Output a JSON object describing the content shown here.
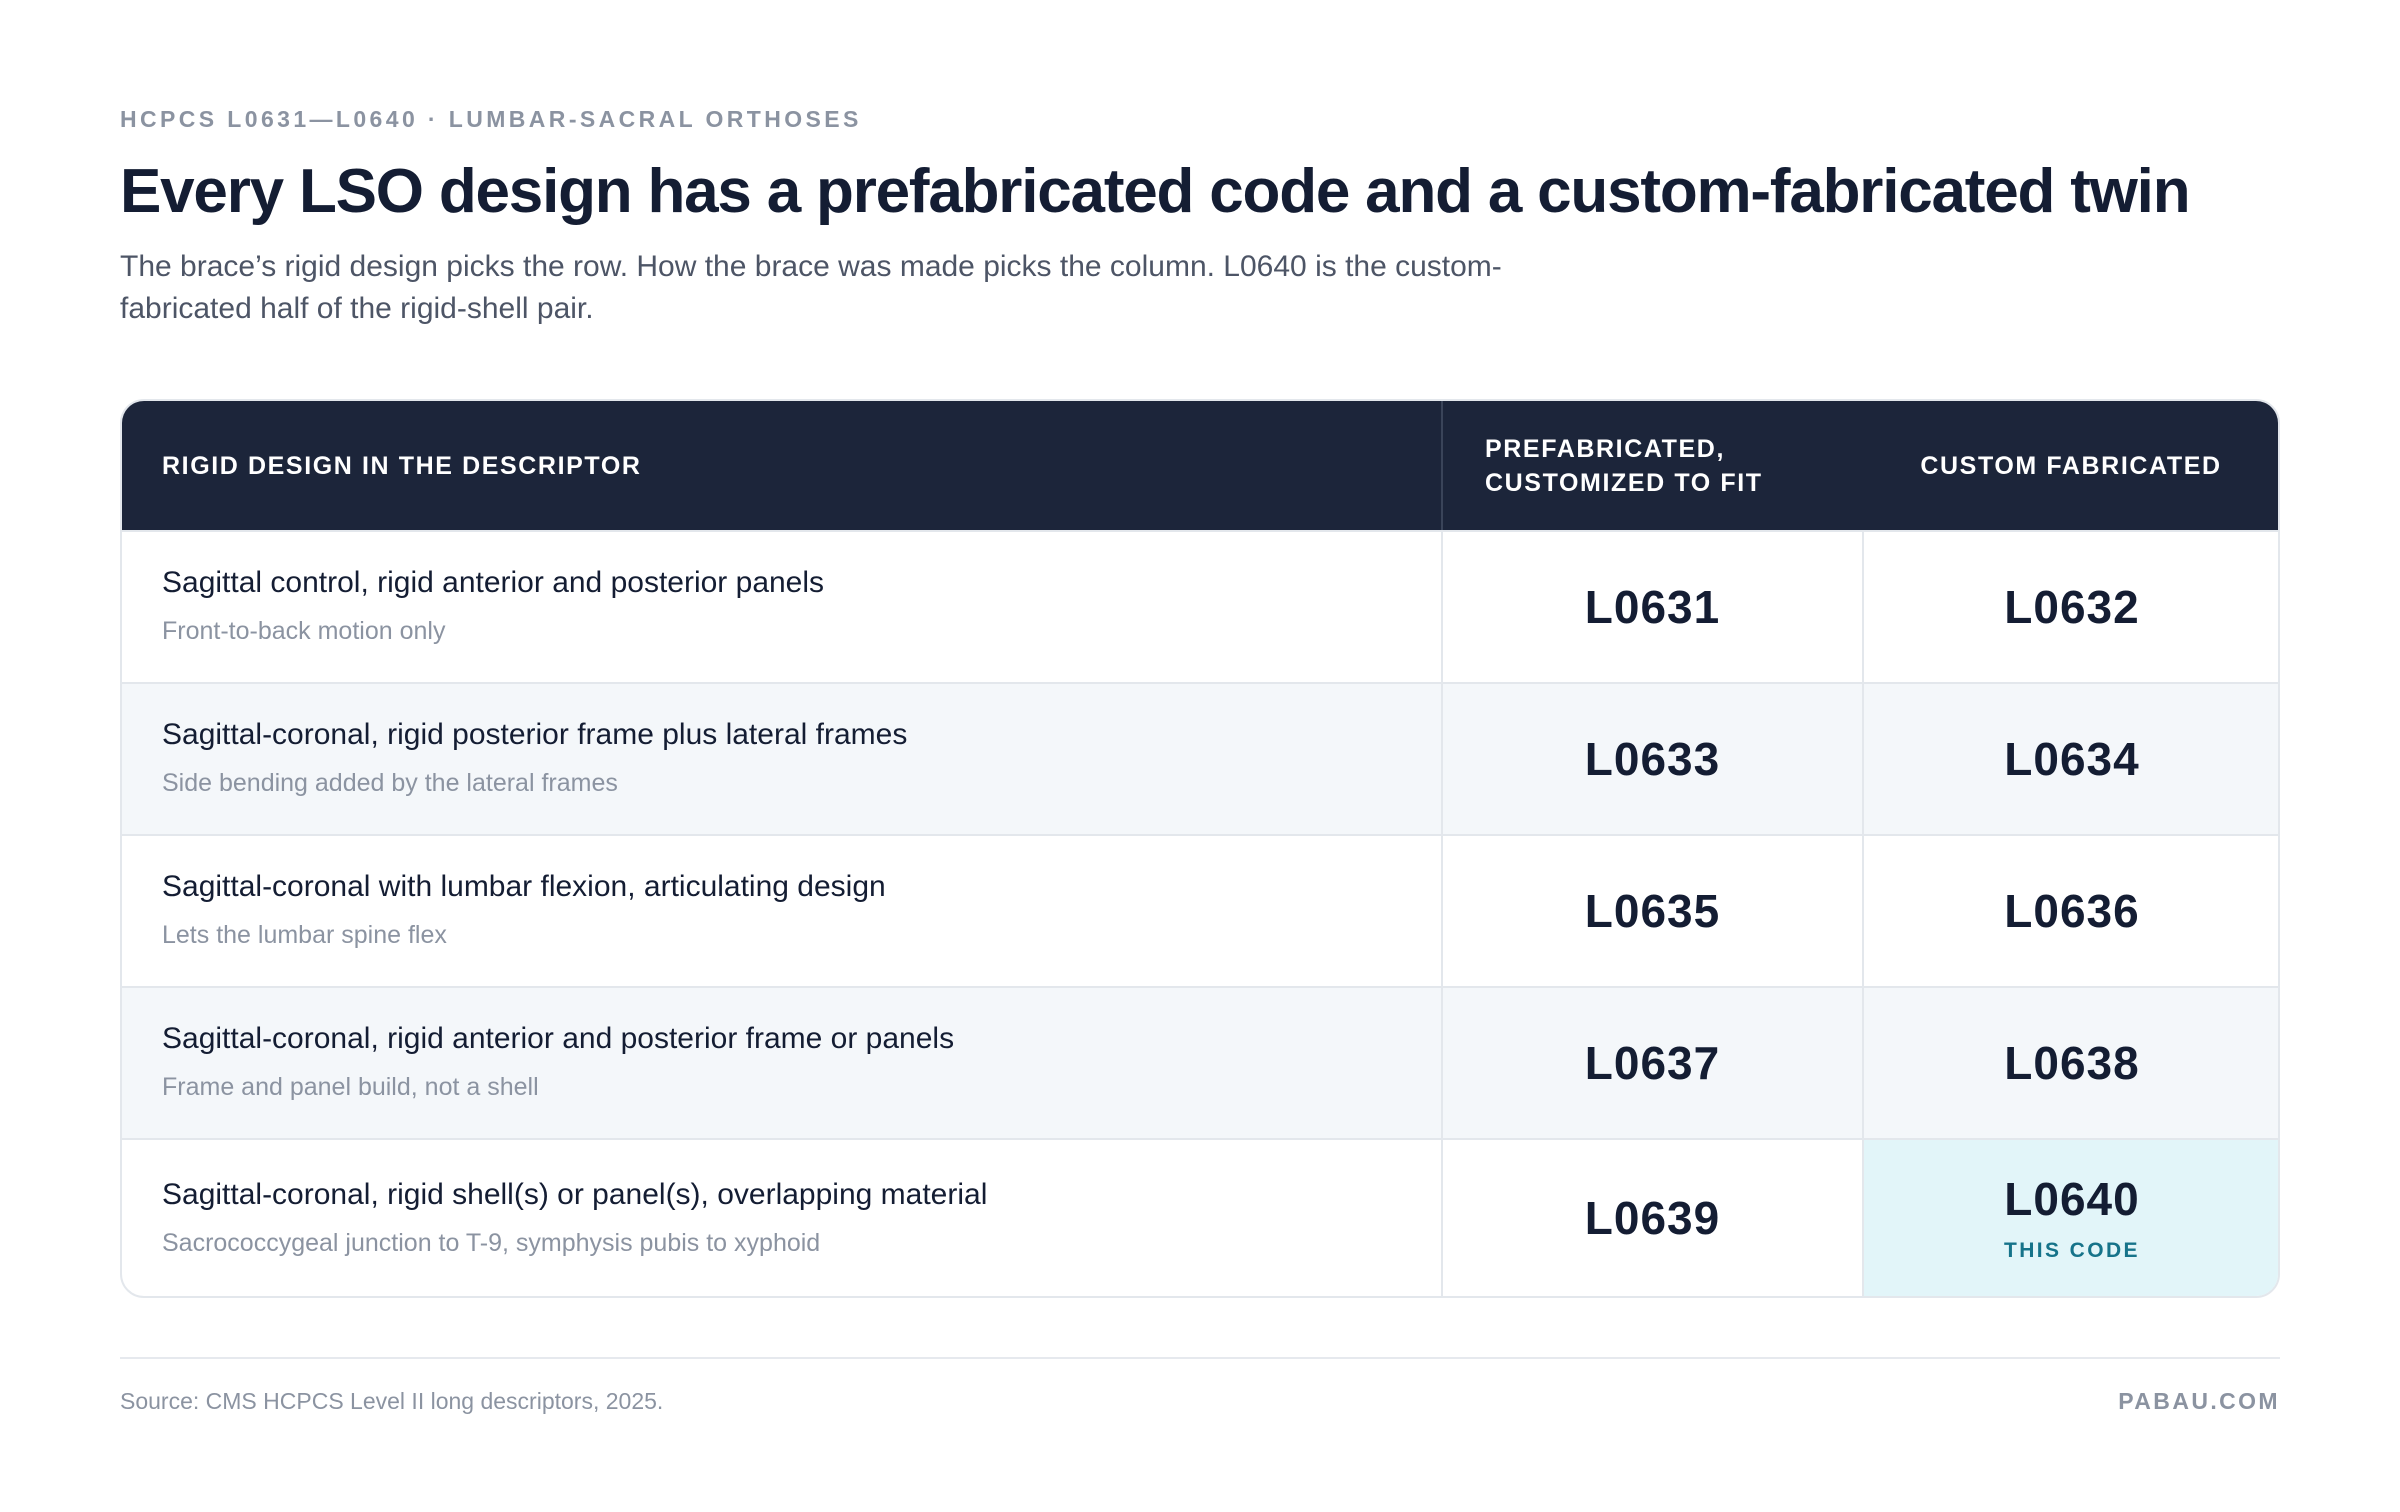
{
  "header": {
    "eyebrow": "HCPCS L0631—L0640 · LUMBAR-SACRAL ORTHOSES",
    "title": "Every LSO design has a prefabricated code and a custom-fabricated twin",
    "subtitle": "The brace’s rigid design picks the row. How the brace was made picks the column. L0640 is the custom-fabricated half of the rigid-shell pair."
  },
  "table": {
    "columns": [
      "RIGID DESIGN IN THE DESCRIPTOR",
      "PREFABRICATED, CUSTOMIZED TO FIT",
      "CUSTOM FABRICATED"
    ],
    "rows": [
      {
        "design": "Sagittal control, rigid anterior and posterior panels",
        "note": "Front-to-back motion only",
        "prefabricated": "L0631",
        "custom": "L0632"
      },
      {
        "design": "Sagittal-coronal, rigid posterior frame plus lateral frames",
        "note": "Side bending added by the lateral frames",
        "prefabricated": "L0633",
        "custom": "L0634"
      },
      {
        "design": "Sagittal-coronal with lumbar flexion, articulating design",
        "note": "Lets the lumbar spine flex",
        "prefabricated": "L0635",
        "custom": "L0636"
      },
      {
        "design": "Sagittal-coronal, rigid anterior and posterior frame or panels",
        "note": "Frame and panel build, not a shell",
        "prefabricated": "L0637",
        "custom": "L0638"
      },
      {
        "design": "Sagittal-coronal, rigid shell(s) or panel(s), overlapping material",
        "note": "Sacrococcygeal junction to T-9, symphysis pubis to xyphoid",
        "prefabricated": "L0639",
        "custom": "L0640",
        "custom_tag": "THIS CODE"
      }
    ]
  },
  "footer": {
    "source": "Source: CMS HCPCS Level II long descriptors, 2025.",
    "brand": "PABAU.COM"
  },
  "colors": {
    "header_bg": "#1c253a",
    "highlight_bg": "#e2f5f9",
    "accent": "#16738a",
    "alt_row_bg": "#f4f7fa"
  }
}
